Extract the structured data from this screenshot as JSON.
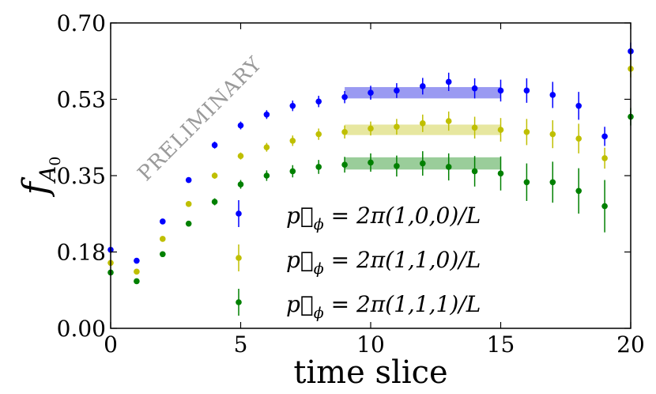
{
  "chart_data": {
    "type": "scatter",
    "title": "",
    "xlabel": "time slice",
    "ylabel": "f",
    "ylabel_subscript": "A",
    "ylabel_subsubscript": "0",
    "xlim": [
      0,
      20
    ],
    "ylim": [
      0.0,
      0.7
    ],
    "xticks": [
      0,
      5,
      10,
      15,
      20
    ],
    "xtick_labels": [
      "0",
      "5",
      "10",
      "15",
      "20"
    ],
    "yticks": [
      0.0,
      0.175,
      0.35,
      0.525,
      0.7
    ],
    "ytick_labels": [
      "0.00",
      "0.18",
      "0.35",
      "0.53",
      "0.70"
    ],
    "watermark": "PRELIMINARY",
    "x": [
      0,
      1,
      2,
      3,
      4,
      5,
      6,
      7,
      8,
      9,
      10,
      11,
      12,
      13,
      14,
      15,
      16,
      17,
      18,
      19,
      20
    ],
    "series": [
      {
        "name": "p_phi = 2π(1,0,0)/L",
        "legend_label": "p⃗ϕ = 2π(1,0,0)/L",
        "color": "#0000ff",
        "band_color": "#8888f0",
        "values": [
          0.18,
          0.155,
          0.245,
          0.34,
          0.42,
          0.465,
          0.49,
          0.51,
          0.52,
          0.53,
          0.54,
          0.545,
          0.555,
          0.565,
          0.55,
          0.545,
          0.545,
          0.535,
          0.51,
          0.44,
          0.635
        ],
        "errors": [
          0.004,
          0.004,
          0.004,
          0.006,
          0.008,
          0.009,
          0.01,
          0.012,
          0.013,
          0.014,
          0.016,
          0.017,
          0.019,
          0.021,
          0.023,
          0.025,
          0.028,
          0.03,
          0.032,
          0.022,
          0.02
        ],
        "fit": {
          "x_start": 9,
          "x_end": 15,
          "center": 0.54,
          "half_width": 0.013
        }
      },
      {
        "name": "p_phi = 2π(1,1,0)/L",
        "legend_label": "p⃗ϕ = 2π(1,1,0)/L",
        "color": "#bfbf00",
        "band_color": "#e3e38f",
        "values": [
          0.15,
          0.13,
          0.205,
          0.285,
          0.35,
          0.395,
          0.415,
          0.43,
          0.445,
          0.45,
          0.458,
          0.462,
          0.47,
          0.475,
          0.46,
          0.455,
          0.45,
          0.445,
          0.435,
          0.39,
          0.595
        ],
        "errors": [
          0.004,
          0.004,
          0.004,
          0.006,
          0.007,
          0.008,
          0.01,
          0.012,
          0.013,
          0.015,
          0.016,
          0.018,
          0.02,
          0.022,
          0.025,
          0.027,
          0.03,
          0.032,
          0.034,
          0.024,
          0.02
        ],
        "fit": {
          "x_start": 9,
          "x_end": 15,
          "center": 0.455,
          "half_width": 0.012
        }
      },
      {
        "name": "p_phi = 2π(1,1,1)/L",
        "legend_label": "p⃗ϕ = 2π(1,1,1)/L",
        "color": "#008000",
        "band_color": "#88c488",
        "values": [
          0.128,
          0.108,
          0.17,
          0.24,
          0.29,
          0.33,
          0.35,
          0.36,
          0.37,
          0.375,
          0.38,
          0.372,
          0.378,
          0.37,
          0.36,
          0.355,
          0.335,
          0.335,
          0.315,
          0.28,
          0.485
        ],
        "errors": [
          0.004,
          0.004,
          0.005,
          0.006,
          0.008,
          0.01,
          0.012,
          0.014,
          0.016,
          0.018,
          0.021,
          0.024,
          0.028,
          0.031,
          0.035,
          0.039,
          0.043,
          0.047,
          0.052,
          0.06,
          0.02
        ],
        "fit": {
          "x_start": 9,
          "x_end": 15,
          "center": 0.378,
          "half_width": 0.014
        }
      }
    ],
    "legend": {
      "location": "lower-center",
      "entries": [
        {
          "prefix": "p⃗",
          "sub": "ϕ",
          "text": " = 2π(1,0,0)/L"
        },
        {
          "prefix": "p⃗",
          "sub": "ϕ",
          "text": " = 2π(1,1,0)/L"
        },
        {
          "prefix": "p⃗",
          "sub": "ϕ",
          "text": " = 2π(1,1,1)/L"
        }
      ]
    }
  }
}
